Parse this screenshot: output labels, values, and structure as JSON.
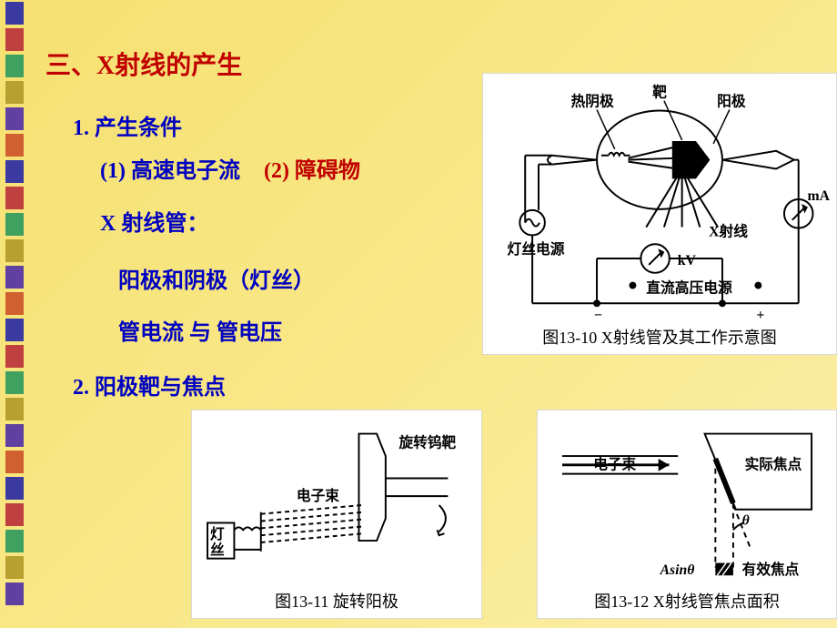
{
  "sidebar": {
    "colors": [
      "#3a3aa0",
      "#c04040",
      "#40a060",
      "#b8a030",
      "#6040a0",
      "#d06030",
      "#3a3aa0",
      "#c04040",
      "#40a060",
      "#b8a030",
      "#6040a0",
      "#d06030",
      "#3a3aa0",
      "#c04040",
      "#40a060",
      "#b8a030",
      "#6040a0",
      "#d06030",
      "#3a3aa0",
      "#c04040",
      "#40a060",
      "#b8a030",
      "#6040a0"
    ]
  },
  "heading": "三、X射线的产生",
  "section1": {
    "title": "1. 产生条件",
    "cond1": "(1) 高速电子流",
    "cond2": "(2) 障碍物",
    "tube_title": "X 射线管：",
    "tube_sub": "阳极和阴极（灯丝）",
    "tube_line2": "管电流 与 管电压"
  },
  "section2": {
    "title": "2. 阳极靶与焦点"
  },
  "fig1": {
    "labels": {
      "target": "靶",
      "cathode": "热阴极",
      "anode": "阳极",
      "xray": "X射线",
      "mA": "mA",
      "filament_src": "灯丝电源",
      "kV": "kV",
      "dc_hv": "直流高压电源",
      "minus": "−",
      "plus": "+"
    },
    "caption": "图13-10  X射线管及其工作示意图",
    "style": {
      "bg": "#ffffff",
      "stroke": "#000000",
      "stroke_width": 2,
      "font_size": 16
    }
  },
  "fig2": {
    "labels": {
      "rot_target": "旋转钨靶",
      "ebeam": "电子束",
      "filament": "灯丝"
    },
    "caption": "图13-11  旋转阳极",
    "style": {
      "bg": "#ffffff",
      "stroke": "#000000",
      "stroke_width": 2,
      "font_size": 16
    }
  },
  "fig3": {
    "labels": {
      "ebeam": "电子束",
      "real_focus": "实际焦点",
      "theta": "θ",
      "Asin": "Asinθ",
      "eff_focus": "有效焦点"
    },
    "caption": "图13-12  X射线管焦点面积",
    "style": {
      "bg": "#ffffff",
      "stroke": "#000000",
      "stroke_width": 2,
      "font_size": 16
    }
  }
}
